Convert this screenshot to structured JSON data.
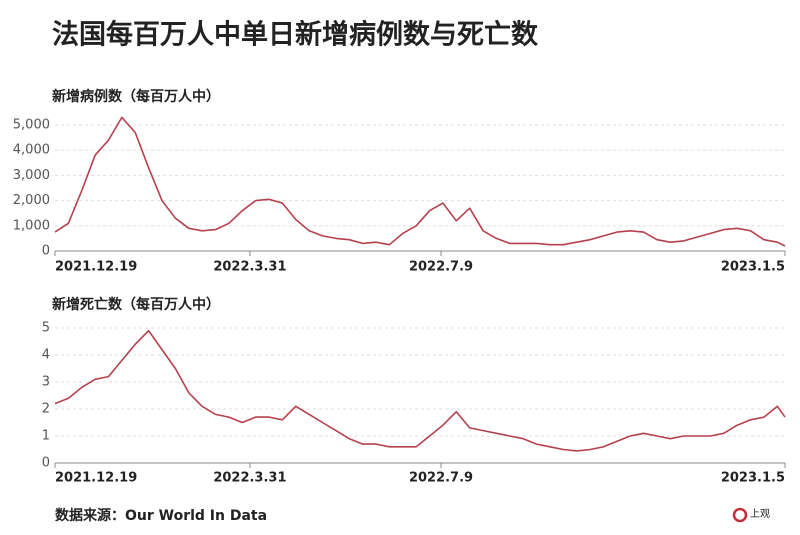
{
  "title": "法国每百万人中单日新增病例数与死亡数",
  "source": "数据来源：Our World In Data",
  "logo": "上观",
  "chart_data": [
    {
      "type": "line",
      "title": "新增病例数（每百万人中）",
      "color": "#b5414f",
      "grid": true,
      "x": [
        "2021.12.19",
        "2021.12.26",
        "2022.1.2",
        "2022.1.9",
        "2022.1.16",
        "2022.1.23",
        "2022.1.30",
        "2022.2.6",
        "2022.2.13",
        "2022.2.20",
        "2022.2.27",
        "2022.3.6",
        "2022.3.13",
        "2022.3.20",
        "2022.3.27",
        "2022.4.3",
        "2022.4.10",
        "2022.4.17",
        "2022.4.24",
        "2022.5.1",
        "2022.5.8",
        "2022.5.15",
        "2022.5.22",
        "2022.5.29",
        "2022.6.5",
        "2022.6.12",
        "2022.6.19",
        "2022.6.26",
        "2022.7.3",
        "2022.7.10",
        "2022.7.17",
        "2022.7.24",
        "2022.7.31",
        "2022.8.7",
        "2022.8.14",
        "2022.8.21",
        "2022.8.28",
        "2022.9.4",
        "2022.9.11",
        "2022.9.18",
        "2022.9.25",
        "2022.10.2",
        "2022.10.9",
        "2022.10.16",
        "2022.10.23",
        "2022.10.30",
        "2022.11.6",
        "2022.11.13",
        "2022.11.20",
        "2022.11.27",
        "2022.12.4",
        "2022.12.11",
        "2022.12.18",
        "2022.12.25",
        "2023.1.1",
        "2023.1.5"
      ],
      "values": [
        750,
        1100,
        2400,
        3800,
        4400,
        5300,
        4700,
        3300,
        2000,
        1300,
        900,
        800,
        850,
        1100,
        1600,
        2000,
        2050,
        1900,
        1250,
        800,
        600,
        500,
        450,
        300,
        350,
        250,
        700,
        1000,
        1600,
        1900,
        1200,
        1700,
        800,
        500,
        300,
        300,
        300,
        250,
        250,
        350,
        450,
        600,
        750,
        800,
        750,
        450,
        350,
        400,
        550,
        700,
        850,
        900,
        800,
        450,
        350,
        200
      ],
      "xlim": [
        "2021.12.19",
        "2023.1.5"
      ],
      "xticks": [
        "2021.12.19",
        "2022.3.31",
        "2022.7.9",
        "2023.1.5"
      ],
      "ylim": [
        0,
        5000
      ],
      "yticks": [
        0,
        {
          "value": 1000,
          "label": "1,000"
        },
        {
          "value": 2000,
          "label": "2,000"
        },
        {
          "value": 3000,
          "label": "3,000"
        },
        {
          "value": 4000,
          "label": "4,000"
        },
        {
          "value": 5000,
          "label": "5,000"
        }
      ]
    },
    {
      "type": "line",
      "title": "新增死亡数（每百万人中）",
      "color": "#b5414f",
      "grid": true,
      "x": [
        "2021.12.19",
        "2021.12.26",
        "2022.1.2",
        "2022.1.9",
        "2022.1.16",
        "2022.1.23",
        "2022.1.30",
        "2022.2.6",
        "2022.2.13",
        "2022.2.20",
        "2022.2.27",
        "2022.3.6",
        "2022.3.13",
        "2022.3.20",
        "2022.3.27",
        "2022.4.3",
        "2022.4.10",
        "2022.4.17",
        "2022.4.24",
        "2022.5.1",
        "2022.5.8",
        "2022.5.15",
        "2022.5.22",
        "2022.5.29",
        "2022.6.5",
        "2022.6.12",
        "2022.6.19",
        "2022.6.26",
        "2022.7.3",
        "2022.7.10",
        "2022.7.17",
        "2022.7.24",
        "2022.7.31",
        "2022.8.7",
        "2022.8.14",
        "2022.8.21",
        "2022.8.28",
        "2022.9.4",
        "2022.9.11",
        "2022.9.18",
        "2022.9.25",
        "2022.10.2",
        "2022.10.9",
        "2022.10.16",
        "2022.10.23",
        "2022.10.30",
        "2022.11.6",
        "2022.11.13",
        "2022.11.20",
        "2022.11.27",
        "2022.12.4",
        "2022.12.11",
        "2022.12.18",
        "2022.12.25",
        "2023.1.1",
        "2023.1.5"
      ],
      "values": [
        2.2,
        2.4,
        2.8,
        3.1,
        3.2,
        3.8,
        4.4,
        4.9,
        4.2,
        3.5,
        2.6,
        2.1,
        1.8,
        1.7,
        1.5,
        1.7,
        1.7,
        1.6,
        2.1,
        1.8,
        1.5,
        1.2,
        0.9,
        0.7,
        0.7,
        0.6,
        0.6,
        0.6,
        1.0,
        1.4,
        1.9,
        1.3,
        1.2,
        1.1,
        1.0,
        0.9,
        0.7,
        0.6,
        0.5,
        0.45,
        0.5,
        0.6,
        0.8,
        1.0,
        1.1,
        1.0,
        0.9,
        1.0,
        1.0,
        1.0,
        1.1,
        1.4,
        1.6,
        1.7,
        2.1,
        1.7
      ],
      "xlim": [
        "2021.12.19",
        "2023.1.5"
      ],
      "xticks": [
        "2021.12.19",
        "2022.3.31",
        "2022.7.9",
        "2023.1.5"
      ],
      "ylim": [
        0,
        5
      ],
      "yticks": [
        0,
        1,
        2,
        3,
        4,
        5
      ]
    }
  ]
}
